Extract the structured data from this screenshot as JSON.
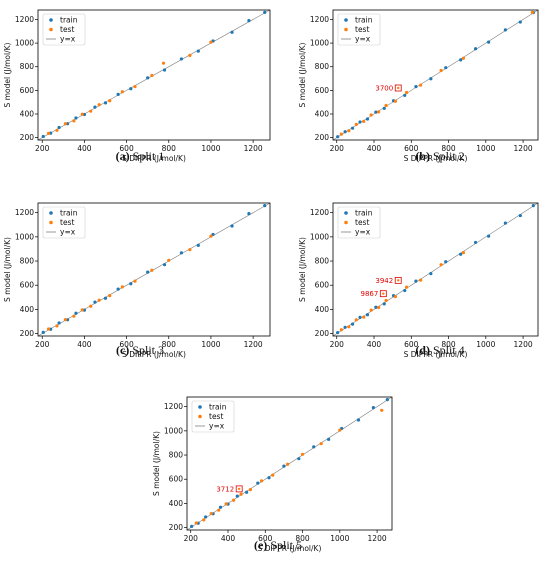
{
  "colors": {
    "train": "#1f77b4",
    "test": "#ff7f0e",
    "identity": "#7f7f7f",
    "annotation": "#e00000"
  },
  "chart_data": [
    {
      "type": "scatter",
      "xlabel": "S DIPPR (J/mol/K)",
      "ylabel": "S model (J/mol/K)",
      "xlim": [
        180,
        1280
      ],
      "ylim": [
        180,
        1280
      ],
      "xticks": [
        200,
        400,
        600,
        800,
        1000,
        1200
      ],
      "yticks": [
        200,
        400,
        600,
        800,
        1000,
        1200
      ],
      "legend": {
        "position": "top-left",
        "entries": [
          "train",
          "test",
          "y=x"
        ]
      },
      "caption_letter": "(a)",
      "caption_text": " Split 1",
      "series": [
        {
          "name": "train",
          "points": [
            [
              205,
              210
            ],
            [
              240,
              238
            ],
            [
              280,
              286
            ],
            [
              320,
              318
            ],
            [
              360,
              366
            ],
            [
              400,
              396
            ],
            [
              450,
              458
            ],
            [
              500,
              494
            ],
            [
              560,
              566
            ],
            [
              620,
              614
            ],
            [
              700,
              706
            ],
            [
              780,
              772
            ],
            [
              860,
              866
            ],
            [
              940,
              932
            ],
            [
              1010,
              1018
            ],
            [
              1100,
              1092
            ],
            [
              1180,
              1190
            ],
            [
              1255,
              1260
            ]
          ]
        },
        {
          "name": "test",
          "points": [
            [
              230,
              236
            ],
            [
              270,
              262
            ],
            [
              310,
              318
            ],
            [
              350,
              342
            ],
            [
              390,
              398
            ],
            [
              430,
              424
            ],
            [
              470,
              478
            ],
            [
              520,
              512
            ],
            [
              580,
              588
            ],
            [
              640,
              632
            ],
            [
              720,
              726
            ],
            [
              775,
              830
            ],
            [
              900,
              896
            ],
            [
              1000,
              1008
            ]
          ]
        }
      ],
      "annotations": []
    },
    {
      "type": "scatter",
      "xlabel": "S DIPPR (J/mol/K)",
      "ylabel": "S model (J/mol/K)",
      "xlim": [
        180,
        1280
      ],
      "ylim": [
        180,
        1280
      ],
      "xticks": [
        200,
        400,
        600,
        800,
        1000,
        1200
      ],
      "yticks": [
        200,
        400,
        600,
        800,
        1000,
        1200
      ],
      "legend": {
        "position": "top-left",
        "entries": [
          "train",
          "test",
          "y=x"
        ]
      },
      "caption_letter": "(b)",
      "caption_text": " Split 2",
      "series": [
        {
          "name": "train",
          "points": [
            [
              205,
              208
            ],
            [
              245,
              250
            ],
            [
              285,
              280
            ],
            [
              325,
              332
            ],
            [
              365,
              358
            ],
            [
              410,
              416
            ],
            [
              455,
              448
            ],
            [
              505,
              512
            ],
            [
              565,
              558
            ],
            [
              625,
              632
            ],
            [
              705,
              698
            ],
            [
              785,
              792
            ],
            [
              865,
              858
            ],
            [
              945,
              952
            ],
            [
              1015,
              1008
            ],
            [
              1105,
              1112
            ],
            [
              1185,
              1178
            ],
            [
              1255,
              1258
            ]
          ]
        },
        {
          "name": "test",
          "points": [
            [
              225,
              230
            ],
            [
              265,
              258
            ],
            [
              305,
              312
            ],
            [
              345,
              338
            ],
            [
              385,
              392
            ],
            [
              425,
              418
            ],
            [
              465,
              472
            ],
            [
              515,
              508
            ],
            [
              575,
              582
            ],
            [
              650,
              644
            ],
            [
              760,
              768
            ],
            [
              880,
              872
            ],
            [
              1250,
              1260
            ]
          ]
        }
      ],
      "annotations": [
        {
          "label": "3700",
          "x": 530,
          "y": 620
        }
      ]
    },
    {
      "type": "scatter",
      "xlabel": "S DIPPR (J/mol/K)",
      "ylabel": "S model (J/mol/K)",
      "xlim": [
        180,
        1280
      ],
      "ylim": [
        180,
        1280
      ],
      "xticks": [
        200,
        400,
        600,
        800,
        1000,
        1200
      ],
      "yticks": [
        200,
        400,
        600,
        800,
        1000,
        1200
      ],
      "legend": {
        "position": "top-left",
        "entries": [
          "train",
          "test",
          "y=x"
        ]
      },
      "caption_letter": "(c)",
      "caption_text": " Split 3",
      "series": [
        {
          "name": "train",
          "points": [
            [
              205,
              210
            ],
            [
              240,
              236
            ],
            [
              280,
              288
            ],
            [
              320,
              314
            ],
            [
              360,
              368
            ],
            [
              400,
              394
            ],
            [
              450,
              460
            ],
            [
              500,
              492
            ],
            [
              560,
              568
            ],
            [
              620,
              612
            ],
            [
              700,
              708
            ],
            [
              780,
              770
            ],
            [
              860,
              868
            ],
            [
              940,
              930
            ],
            [
              1010,
              1020
            ],
            [
              1100,
              1090
            ],
            [
              1180,
              1192
            ],
            [
              1255,
              1258
            ]
          ]
        },
        {
          "name": "test",
          "points": [
            [
              230,
              238
            ],
            [
              270,
              264
            ],
            [
              310,
              316
            ],
            [
              350,
              344
            ],
            [
              390,
              396
            ],
            [
              430,
              426
            ],
            [
              470,
              476
            ],
            [
              520,
              514
            ],
            [
              580,
              586
            ],
            [
              640,
              634
            ],
            [
              720,
              724
            ],
            [
              800,
              806
            ],
            [
              900,
              894
            ],
            [
              1000,
              1006
            ]
          ]
        }
      ],
      "annotations": []
    },
    {
      "type": "scatter",
      "xlabel": "S DIPPR (J/mol/K)",
      "ylabel": "S model (J/mol/K)",
      "xlim": [
        180,
        1280
      ],
      "ylim": [
        180,
        1280
      ],
      "xticks": [
        200,
        400,
        600,
        800,
        1000,
        1200
      ],
      "yticks": [
        200,
        400,
        600,
        800,
        1000,
        1200
      ],
      "legend": {
        "position": "top-left",
        "entries": [
          "train",
          "test",
          "y=x"
        ]
      },
      "caption_letter": "(d)",
      "caption_text": " Split 4",
      "series": [
        {
          "name": "train",
          "points": [
            [
              205,
              208
            ],
            [
              245,
              252
            ],
            [
              285,
              278
            ],
            [
              325,
              334
            ],
            [
              365,
              356
            ],
            [
              410,
              418
            ],
            [
              455,
              446
            ],
            [
              505,
              514
            ],
            [
              565,
              556
            ],
            [
              625,
              634
            ],
            [
              705,
              696
            ],
            [
              785,
              794
            ],
            [
              865,
              856
            ],
            [
              945,
              954
            ],
            [
              1015,
              1006
            ],
            [
              1105,
              1114
            ],
            [
              1185,
              1176
            ],
            [
              1255,
              1258
            ]
          ]
        },
        {
          "name": "test",
          "points": [
            [
              225,
              232
            ],
            [
              265,
              256
            ],
            [
              305,
              314
            ],
            [
              345,
              336
            ],
            [
              385,
              394
            ],
            [
              425,
              416
            ],
            [
              465,
              474
            ],
            [
              515,
              506
            ],
            [
              575,
              584
            ],
            [
              650,
              642
            ],
            [
              760,
              770
            ],
            [
              880,
              870
            ]
          ]
        }
      ],
      "annotations": [
        {
          "label": "3942",
          "x": 530,
          "y": 640
        },
        {
          "label": "9867",
          "x": 450,
          "y": 530
        }
      ]
    },
    {
      "type": "scatter",
      "xlabel": "S DIPPR (J/mol/K)",
      "ylabel": "S model (J/mol/K)",
      "xlim": [
        180,
        1280
      ],
      "ylim": [
        180,
        1280
      ],
      "xticks": [
        200,
        400,
        600,
        800,
        1000,
        1200
      ],
      "yticks": [
        200,
        400,
        600,
        800,
        1000,
        1200
      ],
      "legend": {
        "position": "top-left",
        "entries": [
          "train",
          "test",
          "y=x"
        ]
      },
      "caption_letter": "(e)",
      "caption_text": " Split 5",
      "series": [
        {
          "name": "train",
          "points": [
            [
              205,
              210
            ],
            [
              240,
              236
            ],
            [
              280,
              288
            ],
            [
              320,
              314
            ],
            [
              360,
              368
            ],
            [
              400,
              394
            ],
            [
              450,
              460
            ],
            [
              500,
              492
            ],
            [
              560,
              568
            ],
            [
              620,
              612
            ],
            [
              700,
              708
            ],
            [
              780,
              770
            ],
            [
              860,
              868
            ],
            [
              940,
              930
            ],
            [
              1010,
              1020
            ],
            [
              1100,
              1090
            ],
            [
              1180,
              1192
            ],
            [
              1255,
              1258
            ]
          ]
        },
        {
          "name": "test",
          "points": [
            [
              230,
              238
            ],
            [
              270,
              264
            ],
            [
              310,
              316
            ],
            [
              350,
              344
            ],
            [
              390,
              396
            ],
            [
              430,
              426
            ],
            [
              470,
              476
            ],
            [
              520,
              514
            ],
            [
              580,
              586
            ],
            [
              640,
              634
            ],
            [
              720,
              724
            ],
            [
              800,
              806
            ],
            [
              900,
              894
            ],
            [
              1000,
              1006
            ],
            [
              1225,
              1170
            ]
          ]
        }
      ],
      "annotations": [
        {
          "label": "3712",
          "x": 460,
          "y": 520
        }
      ]
    }
  ]
}
